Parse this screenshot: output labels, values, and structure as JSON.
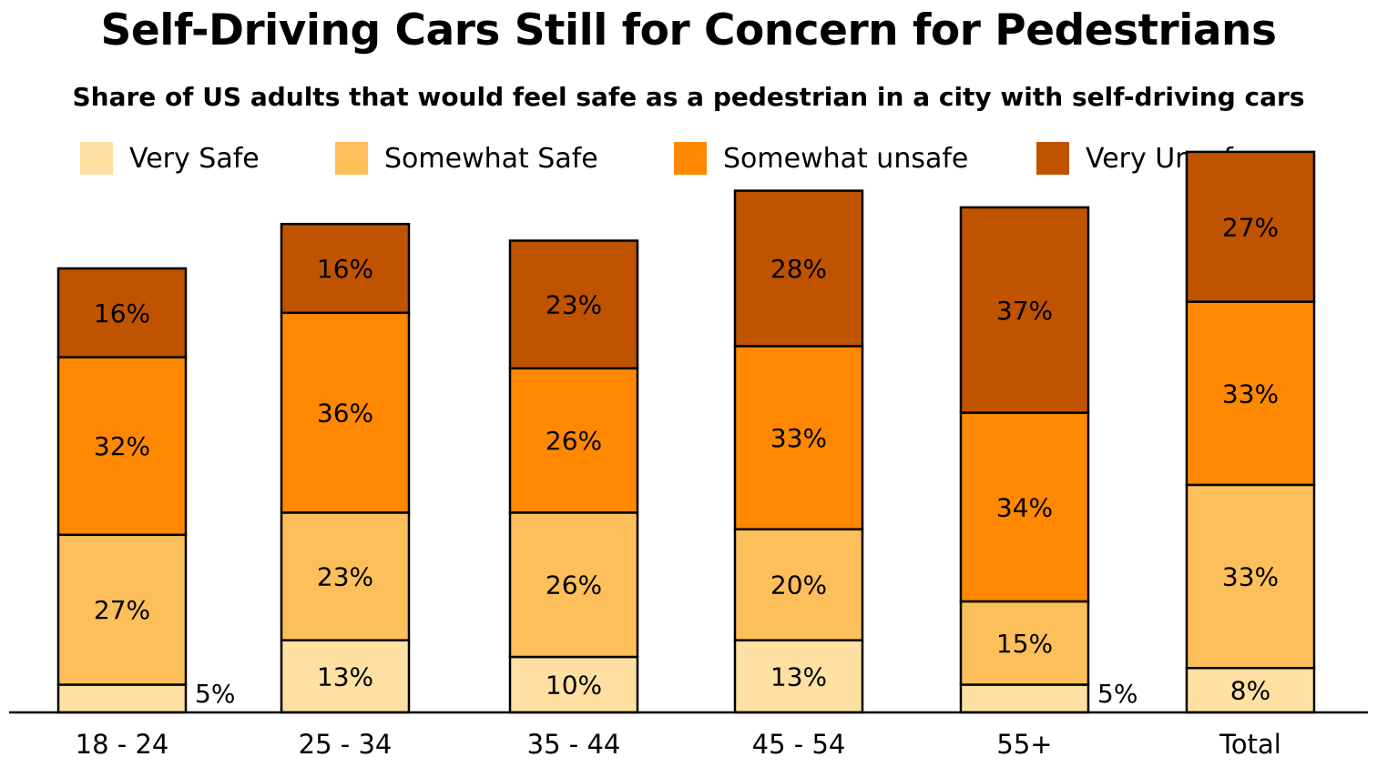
{
  "chart_data": {
    "type": "bar",
    "stacked": true,
    "title": "Self-Driving Cars Still for Concern for Pedestrians",
    "subtitle": "Share of US adults that would feel safe as a pedestrian in a city with self-driving cars",
    "categories": [
      "18 - 24",
      "25 - 34",
      "35 - 44",
      "45 - 54",
      "55+",
      "Total"
    ],
    "series": [
      {
        "name": "Very Safe",
        "color": "#FFE0A3",
        "values": [
          5,
          13,
          10,
          13,
          5,
          8
        ],
        "labels": [
          "5%",
          "13%",
          "10%",
          "13%",
          "5%",
          "8%"
        ]
      },
      {
        "name": "Somewhat Safe",
        "color": "#FDBF5A",
        "values": [
          27,
          23,
          26,
          20,
          15,
          33
        ],
        "labels": [
          "27%",
          "23%",
          "26%",
          "20%",
          "15%",
          "33%"
        ]
      },
      {
        "name": "Somewhat unsafe",
        "color": "#FF8800",
        "values": [
          32,
          36,
          26,
          33,
          34,
          33
        ],
        "labels": [
          "32%",
          "36%",
          "26%",
          "33%",
          "34%",
          "33%"
        ]
      },
      {
        "name": "Very Unsafe",
        "color": "#BF5300",
        "values": [
          16,
          16,
          23,
          28,
          37,
          27
        ],
        "labels": [
          "16%",
          "16%",
          "23%",
          "28%",
          "37%",
          "27%"
        ]
      }
    ],
    "legend_position": "top",
    "grid": false
  }
}
